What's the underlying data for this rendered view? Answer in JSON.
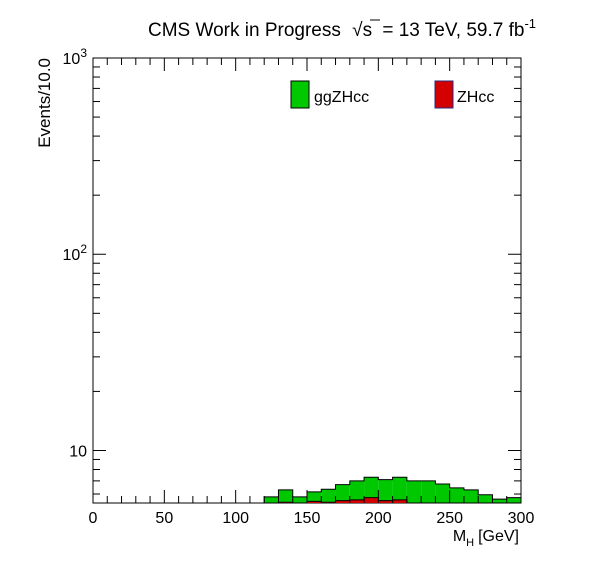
{
  "chart_data": {
    "type": "bar",
    "stacked": true,
    "title_prefix": "CMS Work in Progress",
    "title_energy": "= 13 TeV, 59.7 fb",
    "title_sqrt_s": "s",
    "title_superscript": "-1",
    "xlabel_main": "M",
    "xlabel_sub": "H",
    "xlabel_unit": "[GeV]",
    "ylabel": "Events/10.0",
    "y_log": true,
    "ylim": [
      5.4,
      1000
    ],
    "xlim": [
      0,
      300
    ],
    "x_ticks": [
      {
        "value": 0,
        "label": "0"
      },
      {
        "value": 50,
        "label": "50"
      },
      {
        "value": 100,
        "label": "100"
      },
      {
        "value": 150,
        "label": "150"
      },
      {
        "value": 200,
        "label": "200"
      },
      {
        "value": 250,
        "label": "250"
      },
      {
        "value": 300,
        "label": "300"
      }
    ],
    "y_major": [
      {
        "value": 10,
        "base": "10",
        "exp": ""
      },
      {
        "value": 100,
        "base": "10",
        "exp": "2"
      },
      {
        "value": 1000,
        "base": "10",
        "exp": "3"
      }
    ],
    "bin_edges": [
      120,
      130,
      140,
      150,
      160,
      170,
      180,
      190,
      200,
      210,
      220,
      230,
      240,
      250,
      260,
      270,
      280,
      290,
      300
    ],
    "series": [
      {
        "name": "ZHcc",
        "color": "#d40000",
        "values": [
          5.4,
          5.45,
          5.4,
          5.5,
          5.45,
          5.55,
          5.6,
          5.75,
          5.55,
          5.6,
          5.4,
          5.4,
          5.4,
          5.4,
          5.4,
          5.4,
          5.4,
          5.4
        ]
      },
      {
        "name": "ggZHcc",
        "color": "#00c800",
        "values": [
          5.8,
          6.3,
          5.8,
          6.15,
          6.35,
          6.7,
          7.0,
          7.3,
          7.1,
          7.3,
          7.0,
          7.0,
          6.75,
          6.45,
          6.3,
          5.95,
          5.65,
          5.75
        ]
      }
    ],
    "legend_position": "top"
  }
}
